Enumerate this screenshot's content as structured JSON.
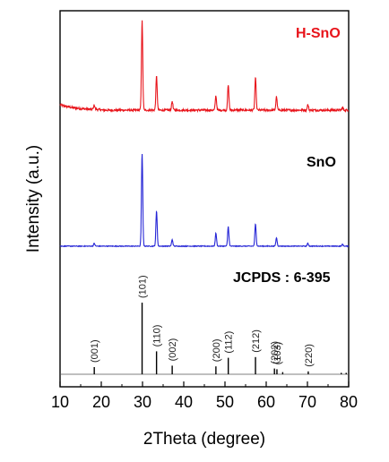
{
  "chart_data": {
    "type": "line",
    "xlabel": "2Theta (degree)",
    "ylabel": "Intensity (a.u.)",
    "xlim": [
      10,
      80
    ],
    "xticks": [
      10,
      20,
      30,
      40,
      50,
      60,
      70,
      80
    ],
    "yticks_shown": false,
    "series": [
      {
        "name": "H-SnO",
        "color": "#e8141b",
        "baseline": 0.05,
        "noise": 0.012,
        "peaks": [
          {
            "x": 18.3,
            "y": 0.05
          },
          {
            "x": 29.9,
            "y": 1.0
          },
          {
            "x": 33.4,
            "y": 0.38
          },
          {
            "x": 37.2,
            "y": 0.1
          },
          {
            "x": 47.8,
            "y": 0.16
          },
          {
            "x": 50.8,
            "y": 0.28
          },
          {
            "x": 57.4,
            "y": 0.36
          },
          {
            "x": 62.5,
            "y": 0.15
          },
          {
            "x": 70.1,
            "y": 0.06
          },
          {
            "x": 78.5,
            "y": 0.03
          }
        ]
      },
      {
        "name": "SnO",
        "color": "#2626d6",
        "baseline": 0.02,
        "noise": 0.004,
        "peaks": [
          {
            "x": 18.3,
            "y": 0.03
          },
          {
            "x": 29.9,
            "y": 1.0
          },
          {
            "x": 33.4,
            "y": 0.38
          },
          {
            "x": 37.2,
            "y": 0.07
          },
          {
            "x": 47.8,
            "y": 0.14
          },
          {
            "x": 50.8,
            "y": 0.21
          },
          {
            "x": 57.4,
            "y": 0.24
          },
          {
            "x": 62.5,
            "y": 0.09
          },
          {
            "x": 70.1,
            "y": 0.03
          },
          {
            "x": 78.5,
            "y": 0.02
          }
        ]
      },
      {
        "name": "JCPDS : 6-395",
        "color": "#000000",
        "type": "stick",
        "sticks": [
          {
            "x": 18.3,
            "y": 0.1,
            "label": "(001)"
          },
          {
            "x": 29.9,
            "y": 1.0,
            "label": "(101)"
          },
          {
            "x": 33.4,
            "y": 0.32,
            "label": "(110)"
          },
          {
            "x": 37.2,
            "y": 0.12,
            "label": "(002)"
          },
          {
            "x": 47.8,
            "y": 0.11,
            "label": "(200)"
          },
          {
            "x": 50.8,
            "y": 0.23,
            "label": "(112)"
          },
          {
            "x": 57.4,
            "y": 0.24,
            "label": "(212)"
          },
          {
            "x": 62.0,
            "y": 0.08,
            "label": "(202)"
          },
          {
            "x": 62.6,
            "y": 0.07,
            "label": "(103)"
          },
          {
            "x": 64.0,
            "y": 0.03,
            "label": ""
          },
          {
            "x": 70.2,
            "y": 0.04,
            "label": "(220)"
          },
          {
            "x": 78.2,
            "y": 0.02,
            "label": ""
          },
          {
            "x": 79.4,
            "y": 0.02,
            "label": ""
          }
        ]
      }
    ],
    "grid": false,
    "legend": "none"
  }
}
